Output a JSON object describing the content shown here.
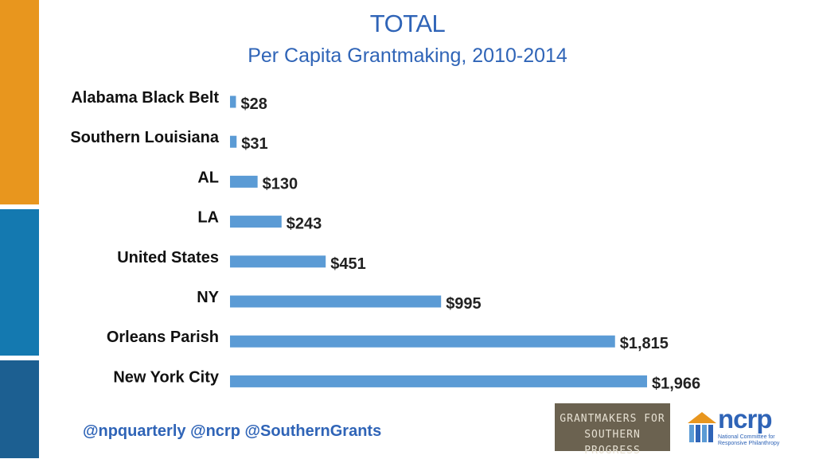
{
  "colors": {
    "stripes": [
      "#e8961e",
      "#1479b0",
      "#1c5f91"
    ],
    "bar": "#5b9bd5",
    "title": "#2f64b7",
    "logo_bg": "#6b6250"
  },
  "footer": {
    "handles": "@npquarterly @ncrp @SouthernGrants",
    "logo_gsp_lines": [
      "GRANTMAKERS FOR",
      "SOUTHERN PROGRESS"
    ],
    "logo_ncrp_word": "ncrp",
    "logo_ncrp_sub": "National Committee for Responsive Philanthropy"
  },
  "chart_data": {
    "type": "bar",
    "orientation": "horizontal",
    "title": "TOTAL",
    "subtitle": "Per Capita Grantmaking, 2010-2014",
    "categories": [
      "Alabama Black Belt",
      "Southern Louisiana",
      "AL",
      "LA",
      "United States",
      "NY",
      "Orleans Parish",
      "New York City"
    ],
    "values": [
      28,
      31,
      130,
      243,
      451,
      995,
      1815,
      1966
    ],
    "value_labels": [
      "$28",
      "$31",
      "$130",
      "$243",
      "$451",
      "$995",
      "$1,815",
      "$1,966"
    ],
    "xlim": [
      0,
      1966
    ],
    "grid": false,
    "legend": "none"
  }
}
